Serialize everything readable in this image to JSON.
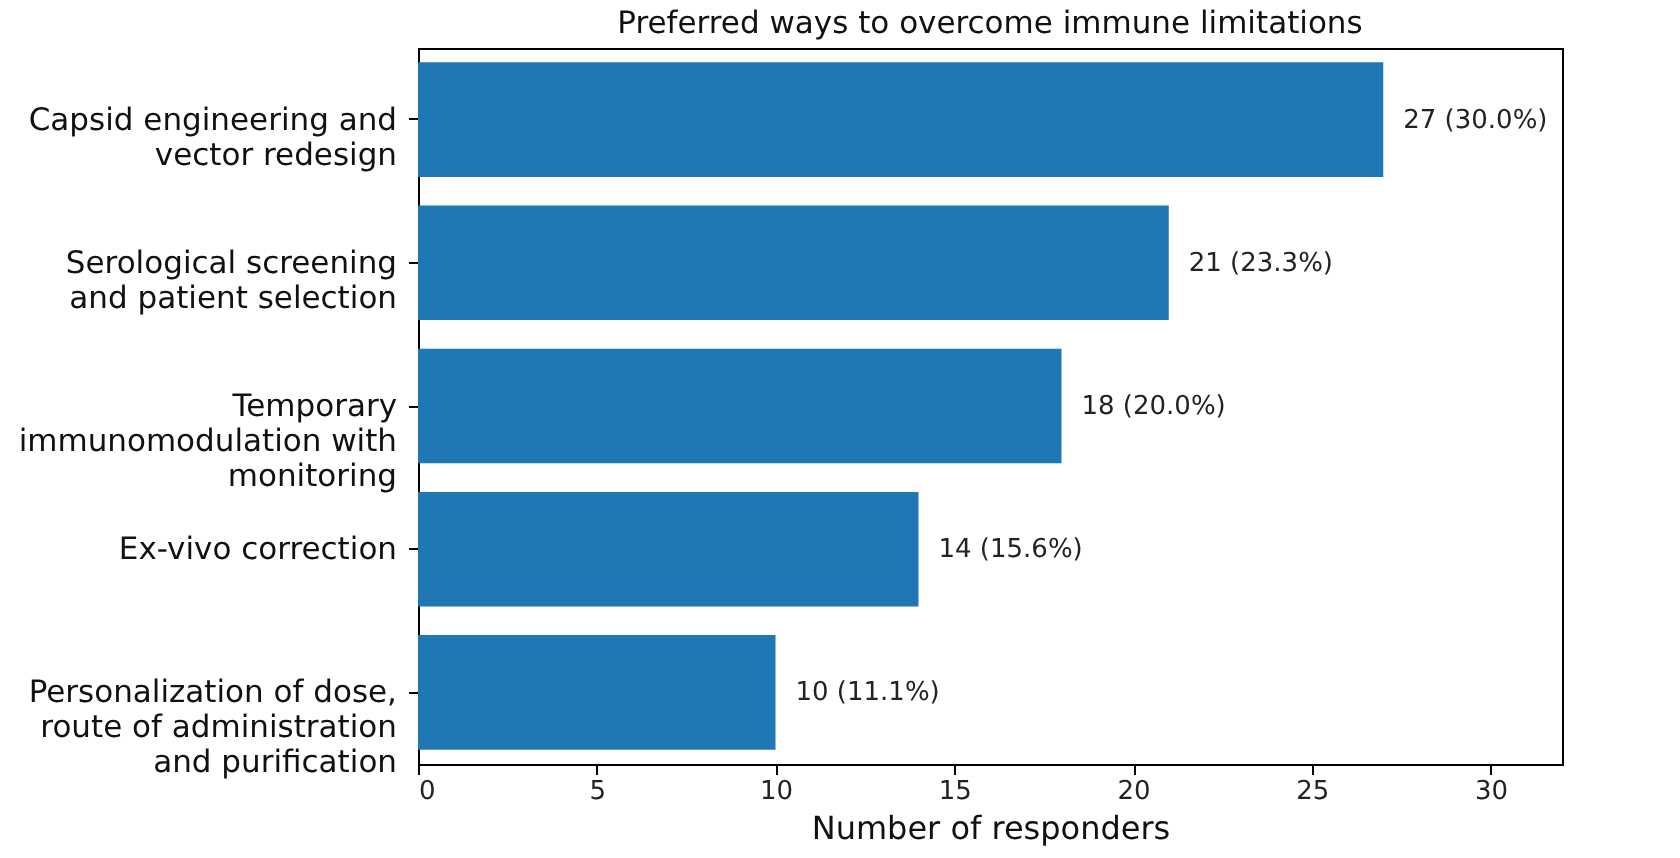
{
  "chart_data": {
    "type": "bar",
    "orientation": "horizontal",
    "title": "Preferred ways to overcome immune limitations",
    "xlabel": "Number of responders",
    "categories": [
      "Capsid engineering and vector redesign",
      "Serological screening and patient selection",
      "Temporary immunomodulation with monitoring",
      "Ex-vivo correction",
      "Personalization of dose, route of administration and purification"
    ],
    "values": [
      27,
      21,
      18,
      14,
      10
    ],
    "value_labels": [
      "27 (30.0%)",
      "21 (23.3%)",
      "18 (20.0%)",
      "14 (15.6%)",
      "10 (11.1%)"
    ],
    "color": "#1f77b4",
    "xlim": [
      0,
      32
    ],
    "xticks": [
      0,
      5,
      10,
      15,
      20,
      25,
      30
    ],
    "grid": false
  }
}
